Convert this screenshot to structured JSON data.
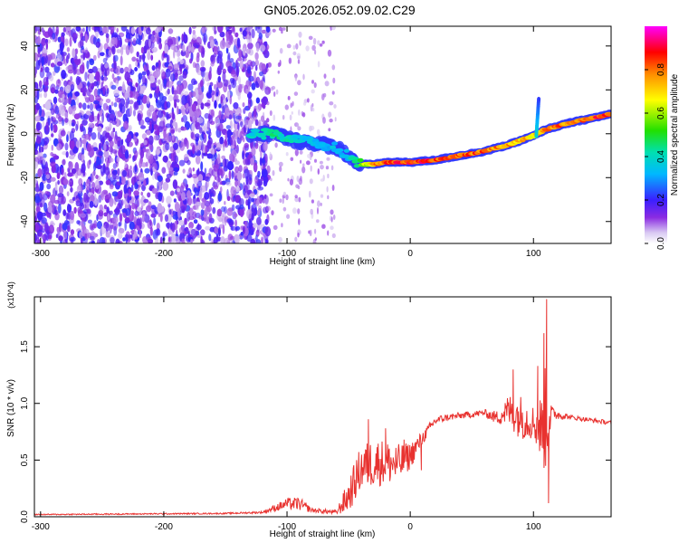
{
  "title": "GN05.2026.052.09.02.C29",
  "chart_data": [
    {
      "type": "heatmap",
      "panel": "top",
      "xlabel": "Height of straight line (km)",
      "ylabel": "Frequency (Hz)",
      "xlim": [
        -305,
        163
      ],
      "ylim": [
        -50,
        49
      ],
      "x_ticks": [
        -300,
        -200,
        -100,
        0,
        100
      ],
      "y_ticks": [
        -40,
        -20,
        0,
        20,
        40
      ],
      "colorbar": {
        "label": "Normalized spectral amplitude",
        "range": [
          0.0,
          1.0
        ],
        "ticks": [
          0.0,
          0.2,
          0.4,
          0.6,
          0.8
        ],
        "tick_labels": [
          "0.0",
          "0.2",
          "0.4",
          "0.6",
          "0.8"
        ]
      },
      "ridge": {
        "x": [
          -130,
          -110,
          -95,
          -80,
          -70,
          -60,
          -50,
          -42,
          -30,
          -20,
          0,
          20,
          40,
          60,
          80,
          90,
          100,
          110,
          130,
          163
        ],
        "y": [
          0,
          0,
          -3,
          -4,
          -5,
          -6,
          -10,
          -14,
          -14,
          -13,
          -13,
          -12,
          -10,
          -8,
          -5,
          -3,
          -1,
          2,
          5,
          9
        ],
        "amplitude": [
          0.4,
          0.45,
          0.4,
          0.35,
          0.35,
          0.35,
          0.35,
          0.5,
          0.75,
          0.85,
          0.9,
          0.9,
          0.85,
          0.85,
          0.8,
          0.75,
          0.75,
          0.8,
          0.85,
          0.9
        ]
      },
      "noise_region_xlim": [
        -305,
        -115
      ],
      "noise_amplitude_range": [
        0.05,
        0.22
      ]
    },
    {
      "type": "line",
      "panel": "bottom",
      "xlabel": "Height of straight line (km)",
      "ylabel": "SNR (10 * v/v)",
      "y_multiplier": "(x10^4)",
      "xlim": [
        -305,
        163
      ],
      "ylim": [
        0,
        1.94
      ],
      "x_ticks": [
        -300,
        -200,
        -100,
        0,
        100
      ],
      "y_ticks": [
        0.0,
        0.5,
        1.0,
        1.5
      ],
      "y_tick_labels": [
        "0.0",
        "0.5",
        "1.0",
        "1.5"
      ],
      "series": [
        {
          "name": "SNR",
          "color": "#e8322f",
          "envelope_x": [
            -305,
            -150,
            -120,
            -100,
            -90,
            -80,
            -60,
            -50,
            -40,
            -30,
            -20,
            -10,
            0,
            10,
            20,
            30,
            60,
            70,
            75,
            80,
            90,
            100,
            108,
            111,
            115,
            130,
            163
          ],
          "envelope_y": [
            0.02,
            0.03,
            0.04,
            0.12,
            0.12,
            0.06,
            0.04,
            0.2,
            0.45,
            0.5,
            0.5,
            0.48,
            0.55,
            0.7,
            0.85,
            0.88,
            0.92,
            0.88,
            0.92,
            0.95,
            0.9,
            0.85,
            0.8,
            1.0,
            0.92,
            0.88,
            0.83
          ],
          "noise": [
            0.005,
            0.006,
            0.01,
            0.05,
            0.06,
            0.02,
            0.02,
            0.15,
            0.2,
            0.22,
            0.2,
            0.18,
            0.12,
            0.06,
            0.04,
            0.03,
            0.03,
            0.06,
            0.1,
            0.15,
            0.2,
            0.15,
            0.35,
            0.6,
            0.06,
            0.02,
            0.02
          ],
          "spikes": [
            {
              "x": 110.7,
              "y": 1.92
            },
            {
              "x": 108.5,
              "y": 1.62
            },
            {
              "x": 112.2,
              "y": 0.12
            },
            {
              "x": 83.5,
              "y": 1.3
            },
            {
              "x": 103.5,
              "y": 1.33
            },
            {
              "x": -34,
              "y": 0.86
            },
            {
              "x": -20,
              "y": 0.78
            },
            {
              "x": -5,
              "y": 0.68
            },
            {
              "x": 9,
              "y": 0.41
            }
          ]
        }
      ]
    }
  ]
}
